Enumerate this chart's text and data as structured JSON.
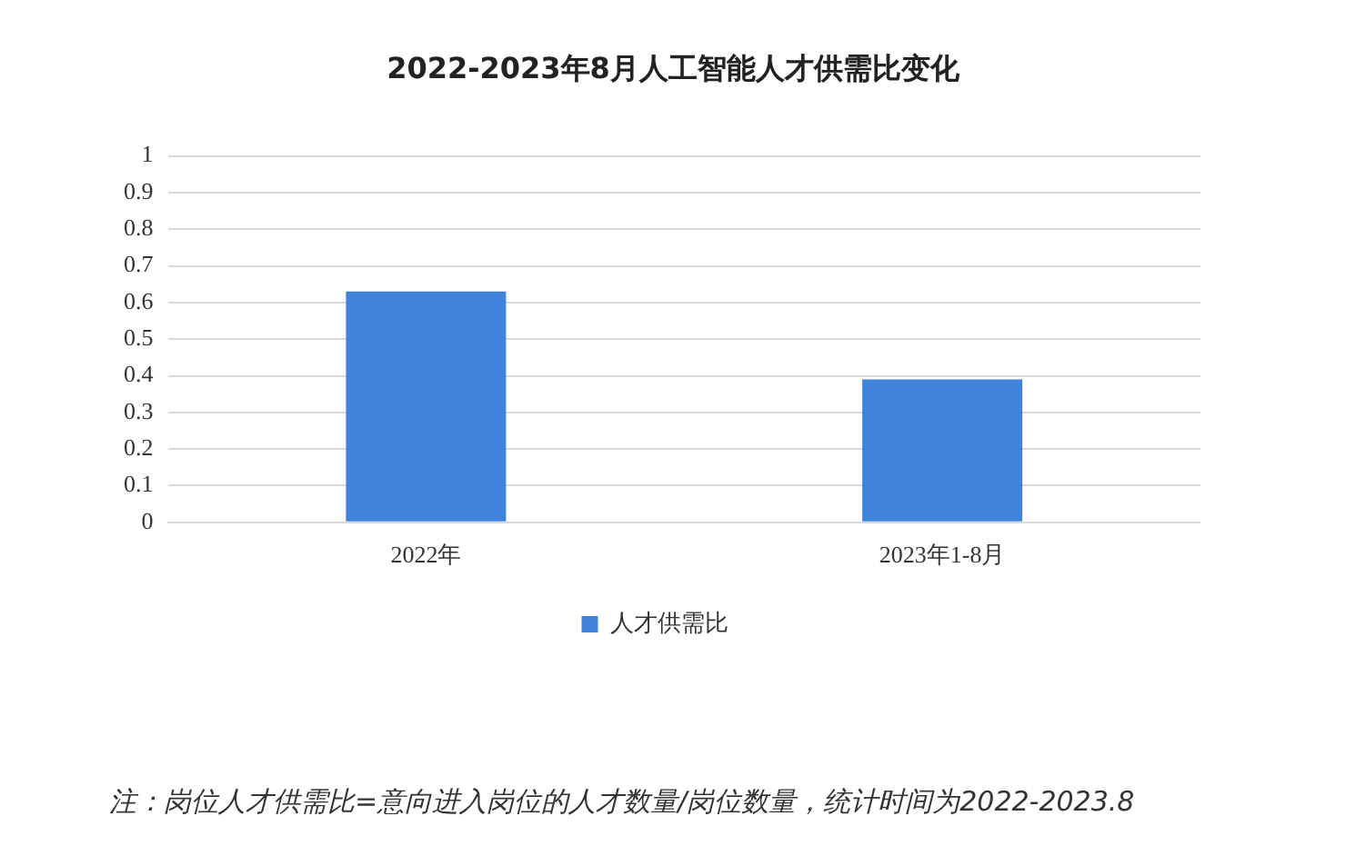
{
  "chart_data": {
    "type": "bar",
    "title": "2022-2023年8月人工智能人才供需比变化",
    "categories": [
      "2022年",
      "2023年1-8月"
    ],
    "series": [
      {
        "name": "人才供需比",
        "color": "#3f83dd",
        "values": [
          0.63,
          0.39
        ]
      }
    ],
    "ylim": [
      0,
      1
    ],
    "yticks": [
      0,
      0.1,
      0.2,
      0.3,
      0.4,
      0.5,
      0.6,
      0.7,
      0.8,
      0.9,
      1
    ],
    "grid": "y",
    "legend": "bottom",
    "annotations": [
      "注：岗位人才供需比=意向进入岗位的人才数量/岗位数量，统计时间为2022-2023.8"
    ]
  }
}
